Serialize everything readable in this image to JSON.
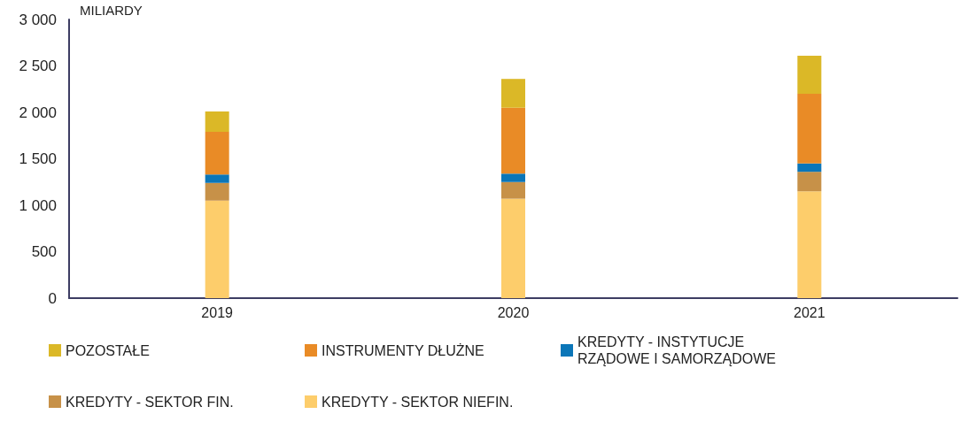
{
  "chart_data": {
    "type": "bar",
    "stacked": true,
    "ylabel": "MILIARDY",
    "categories": [
      "2019",
      "2020",
      "2021"
    ],
    "series": [
      {
        "name": "KREDYTY - SEKTOR NIEFIN.",
        "color": "#fdcd6b",
        "values": [
          1050,
          1070,
          1150
        ]
      },
      {
        "name": "KREDYTY - SEKTOR FIN.",
        "color": "#c79148",
        "values": [
          190,
          180,
          210
        ]
      },
      {
        "name": "KREDYTY - INSTYTUCJE RZĄDOWE I SAMORZĄDOWE",
        "color": "#0b76b8",
        "values": [
          90,
          90,
          90
        ]
      },
      {
        "name": "INSTRUMENTY DŁUŻNE",
        "color": "#e98b26",
        "values": [
          460,
          710,
          750
        ]
      },
      {
        "name": "POZOSTAŁE",
        "color": "#dbb827",
        "values": [
          220,
          310,
          410
        ]
      }
    ],
    "ylim": [
      0,
      3000
    ],
    "yticks": [
      0,
      500,
      {
        "value": 1000,
        "label": "1 000"
      },
      {
        "value": 1500,
        "label": "1 500"
      },
      {
        "value": 2000,
        "label": "2 000"
      },
      {
        "value": 2500,
        "label": "2 500"
      },
      {
        "value": 3000,
        "label": "3 000"
      }
    ],
    "grid": false,
    "legend": "bottom"
  }
}
